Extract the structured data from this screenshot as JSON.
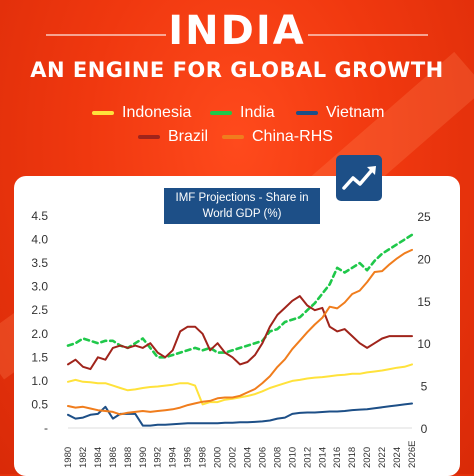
{
  "header": {
    "title": "INDIA",
    "subtitle": "AN ENGINE FOR GLOBAL GROWTH"
  },
  "legend": [
    {
      "label": "Indonesia",
      "color": "#ffe23b"
    },
    {
      "label": "India",
      "color": "#1fc84a"
    },
    {
      "label": "Vietnam",
      "color": "#1d4f87"
    },
    {
      "label": "Brazil",
      "color": "#a0241b"
    },
    {
      "label": "China-RHS",
      "color": "#f07d1d"
    }
  ],
  "projection_label": "IMF Projections - Share in World GDP (%)",
  "badge_icon": "growth-arrow-icon",
  "chart_data": {
    "type": "line",
    "ylim_left": [
      0,
      4.5
    ],
    "ylim_right": [
      0,
      25
    ],
    "yticks_left": [
      "-",
      "0.5",
      "1.0",
      "1.5",
      "2.0",
      "2.5",
      "3.0",
      "3.5",
      "4.0",
      "4.5"
    ],
    "yticks_right": [
      "0",
      "5",
      "10",
      "15",
      "20",
      "25"
    ],
    "xticks": [
      "1980",
      "1982",
      "1984",
      "1986",
      "1988",
      "1990",
      "1992",
      "1994",
      "1996",
      "1998",
      "2000",
      "2002",
      "2004",
      "2006",
      "2008",
      "2010",
      "2012",
      "2014",
      "2016",
      "2018",
      "2020",
      "2022",
      "2024",
      "2026E"
    ],
    "x": [
      1980,
      1981,
      1982,
      1983,
      1984,
      1985,
      1986,
      1987,
      1988,
      1989,
      1990,
      1991,
      1992,
      1993,
      1994,
      1995,
      1996,
      1997,
      1998,
      1999,
      2000,
      2001,
      2002,
      2003,
      2004,
      2005,
      2006,
      2007,
      2008,
      2009,
      2010,
      2011,
      2012,
      2013,
      2014,
      2015,
      2016,
      2017,
      2018,
      2019,
      2020,
      2021,
      2022,
      2023,
      2024,
      2025,
      2026
    ],
    "series": [
      {
        "name": "Indonesia",
        "axis": "left",
        "style": "solid",
        "values": [
          0.98,
          1.02,
          0.98,
          0.97,
          0.95,
          0.95,
          0.9,
          0.85,
          0.8,
          0.82,
          0.85,
          0.87,
          0.88,
          0.9,
          0.92,
          0.95,
          0.95,
          0.9,
          0.5,
          0.55,
          0.55,
          0.6,
          0.62,
          0.65,
          0.68,
          0.72,
          0.78,
          0.85,
          0.9,
          0.95,
          1.0,
          1.02,
          1.05,
          1.07,
          1.08,
          1.1,
          1.12,
          1.13,
          1.15,
          1.15,
          1.18,
          1.2,
          1.22,
          1.25,
          1.28,
          1.3,
          1.35
        ]
      },
      {
        "name": "India",
        "axis": "left",
        "style": "dashed",
        "values": [
          1.75,
          1.8,
          1.9,
          1.85,
          1.8,
          1.85,
          1.85,
          1.75,
          1.7,
          1.8,
          1.9,
          1.7,
          1.5,
          1.5,
          1.55,
          1.6,
          1.65,
          1.7,
          1.65,
          1.7,
          1.6,
          1.6,
          1.65,
          1.7,
          1.75,
          1.8,
          1.85,
          2.05,
          2.1,
          2.25,
          2.3,
          2.35,
          2.5,
          2.65,
          2.85,
          3.05,
          3.4,
          3.3,
          3.4,
          3.5,
          3.35,
          3.55,
          3.7,
          3.8,
          3.9,
          4.0,
          4.1
        ]
      },
      {
        "name": "Vietnam",
        "axis": "left",
        "style": "solid",
        "values": [
          0.28,
          0.2,
          0.22,
          0.28,
          0.3,
          0.45,
          0.2,
          0.3,
          0.3,
          0.3,
          0.05,
          0.05,
          0.07,
          0.07,
          0.08,
          0.09,
          0.1,
          0.1,
          0.1,
          0.1,
          0.1,
          0.11,
          0.11,
          0.12,
          0.12,
          0.13,
          0.14,
          0.16,
          0.2,
          0.22,
          0.3,
          0.32,
          0.33,
          0.33,
          0.34,
          0.35,
          0.35,
          0.36,
          0.38,
          0.39,
          0.4,
          0.42,
          0.44,
          0.46,
          0.48,
          0.5,
          0.52
        ]
      },
      {
        "name": "Brazil",
        "axis": "left",
        "style": "solid",
        "values": [
          1.35,
          1.45,
          1.3,
          1.25,
          1.5,
          1.45,
          1.7,
          1.75,
          1.7,
          1.75,
          1.7,
          1.8,
          1.6,
          1.5,
          1.65,
          2.05,
          2.15,
          2.15,
          2.0,
          1.65,
          1.8,
          1.6,
          1.5,
          1.35,
          1.4,
          1.55,
          1.8,
          2.15,
          2.4,
          2.55,
          2.7,
          2.8,
          2.6,
          2.5,
          2.55,
          2.15,
          2.05,
          2.1,
          1.95,
          1.8,
          1.7,
          1.8,
          1.9,
          1.95,
          1.95,
          1.95,
          1.95
        ]
      },
      {
        "name": "China-RHS",
        "axis": "right",
        "style": "solid",
        "values": [
          2.6,
          2.4,
          2.5,
          2.3,
          2.1,
          2.0,
          1.9,
          1.6,
          1.8,
          1.9,
          2.0,
          1.9,
          2.0,
          2.1,
          2.2,
          2.4,
          2.7,
          2.9,
          3.1,
          3.2,
          3.5,
          3.6,
          3.6,
          3.8,
          4.2,
          4.6,
          5.3,
          6.1,
          7.2,
          8.1,
          9.3,
          10.3,
          11.3,
          12.2,
          13.0,
          14.3,
          14.1,
          14.8,
          15.8,
          16.2,
          17.2,
          18.4,
          18.5,
          19.3,
          20.0,
          20.6,
          21.0
        ]
      }
    ]
  }
}
